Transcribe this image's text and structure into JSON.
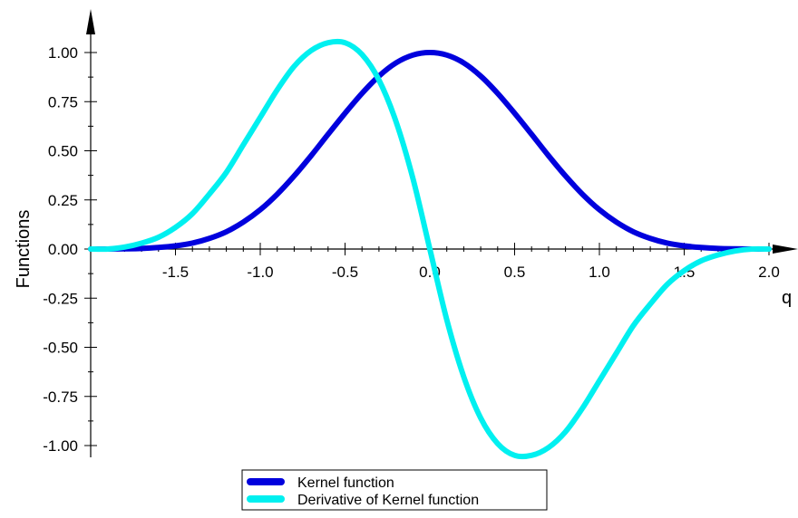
{
  "chart_data": {
    "type": "line",
    "title": "",
    "xlabel": "q",
    "ylabel": "Functions",
    "xlim": [
      -2.0,
      2.0
    ],
    "ylim": [
      -1.0,
      1.0
    ],
    "xticks": [
      -1.5,
      -1.0,
      -0.5,
      0.0,
      0.5,
      1.0,
      1.5,
      2.0
    ],
    "xtick_labels": [
      "-1.5",
      "-1.0",
      "-0.5",
      "0.0",
      "0.5",
      "1.0",
      "1.5",
      "2.0"
    ],
    "yticks": [
      1.0,
      0.75,
      0.5,
      0.25,
      0.0,
      -0.25,
      -0.5,
      -0.75,
      -1.0
    ],
    "ytick_labels": [
      "1.00",
      "0.75",
      "0.50",
      "0.25",
      "0.00",
      "-0.25",
      "-0.50",
      "-0.75",
      "-1.00"
    ],
    "grid": false,
    "legend_position": "bottom-center",
    "series": [
      {
        "name": "Kernel function",
        "color": "#0000dd",
        "x": [
          -2.0,
          -1.9,
          -1.8,
          -1.7,
          -1.6,
          -1.5,
          -1.4,
          -1.3,
          -1.2,
          -1.1,
          -1.0,
          -0.9,
          -0.8,
          -0.7,
          -0.6,
          -0.5,
          -0.4,
          -0.3,
          -0.2,
          -0.1,
          0.0,
          0.1,
          0.2,
          0.3,
          0.4,
          0.5,
          0.6,
          0.7,
          0.8,
          0.9,
          1.0,
          1.1,
          1.2,
          1.3,
          1.4,
          1.5,
          1.6,
          1.7,
          1.8,
          1.9,
          2.0
        ],
        "y": [
          0.0,
          0.0,
          0.001,
          0.003,
          0.008,
          0.016,
          0.03,
          0.054,
          0.088,
          0.137,
          0.2,
          0.279,
          0.372,
          0.475,
          0.584,
          0.691,
          0.792,
          0.88,
          0.947,
          0.987,
          1.0,
          0.987,
          0.947,
          0.88,
          0.792,
          0.691,
          0.584,
          0.475,
          0.372,
          0.279,
          0.2,
          0.137,
          0.088,
          0.054,
          0.03,
          0.016,
          0.008,
          0.003,
          0.001,
          0.0,
          0.0
        ]
      },
      {
        "name": "Derivative of Kernel function",
        "color": "#00f0f0",
        "x": [
          -2.0,
          -1.9,
          -1.8,
          -1.7,
          -1.6,
          -1.5,
          -1.4,
          -1.3,
          -1.2,
          -1.1,
          -1.0,
          -0.9,
          -0.8,
          -0.7,
          -0.6,
          -0.5,
          -0.4,
          -0.3,
          -0.2,
          -0.1,
          0.0,
          0.1,
          0.2,
          0.3,
          0.4,
          0.5,
          0.6,
          0.7,
          0.8,
          0.9,
          1.0,
          1.1,
          1.2,
          1.3,
          1.4,
          1.5,
          1.6,
          1.7,
          1.8,
          1.9,
          2.0
        ],
        "y": [
          0.0,
          0.0,
          0.01,
          0.03,
          0.06,
          0.11,
          0.18,
          0.28,
          0.39,
          0.53,
          0.67,
          0.81,
          0.93,
          1.01,
          1.05,
          1.05,
          0.99,
          0.86,
          0.65,
          0.36,
          0.0,
          -0.36,
          -0.65,
          -0.86,
          -0.99,
          -1.05,
          -1.05,
          -1.01,
          -0.93,
          -0.81,
          -0.67,
          -0.53,
          -0.39,
          -0.28,
          -0.18,
          -0.11,
          -0.06,
          -0.03,
          -0.01,
          0.0,
          0.0
        ]
      }
    ]
  }
}
